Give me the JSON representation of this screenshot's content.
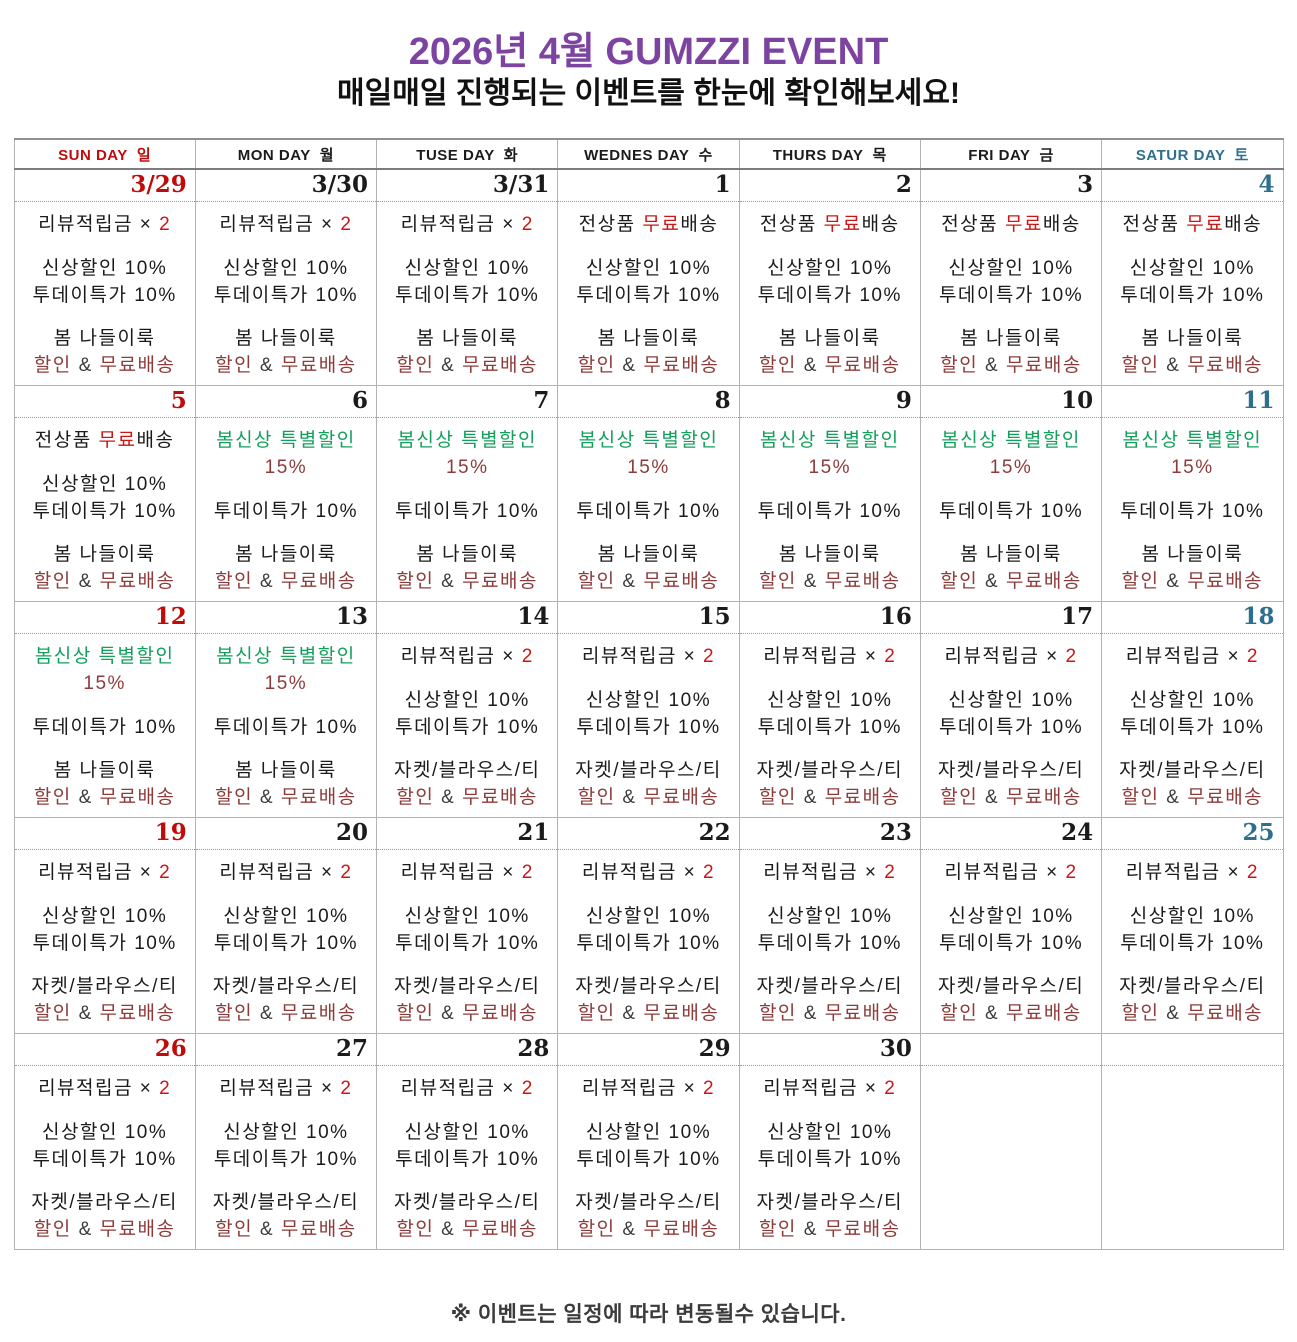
{
  "title": "2026년 4월 GUMZZI EVENT",
  "subtitle": "매일매일 진행되는 이벤트를 한눈에 확인해보세요!",
  "footer": "※ 이벤트는 일정에 따라 변동될수 있습니다.",
  "colors": {
    "purple": "#7d43a1",
    "sun": "#c00b0b",
    "sat": "#2e6e8e",
    "r": "#cc1616",
    "m": "#8e3b3b",
    "g": "#14a05c",
    "a": "#3c3c3c",
    "k": "#1b1b1b",
    "footer_gray": "#3b3b3b"
  },
  "weekday_headers": [
    {
      "label": "SUN DAY  일",
      "c": "sun"
    },
    {
      "label": "MON DAY  월",
      "c": "k"
    },
    {
      "label": "TUSE DAY  화",
      "c": "k"
    },
    {
      "label": "WEDNES DAY  수",
      "c": "k"
    },
    {
      "label": "THURS DAY  목",
      "c": "k"
    },
    {
      "label": "FRI DAY  금",
      "c": "k"
    },
    {
      "label": "SATUR DAY  토",
      "c": "sat"
    }
  ],
  "cell_templates": {
    "review_spring": {
      "blocks": [
        [
          [
            {
              "t": "리뷰적립금 × "
            },
            {
              "t": "2",
              "c": "r"
            }
          ]
        ],
        [
          [
            {
              "t": "신상할인 10%"
            }
          ],
          [
            {
              "t": "투데이특가 10%"
            }
          ]
        ],
        [
          [
            {
              "t": "봄 나들이룩"
            }
          ],
          [
            {
              "t": "할인 ",
              "c": "m"
            },
            {
              "t": "& ",
              "c": "a"
            },
            {
              "t": "무료배송",
              "c": "m"
            }
          ]
        ]
      ]
    },
    "freeship_spring": {
      "blocks": [
        [
          [
            {
              "t": "전상품 "
            },
            {
              "t": "무료",
              "c": "r"
            },
            {
              "t": "배송"
            }
          ]
        ],
        [
          [
            {
              "t": "신상할인 10%"
            }
          ],
          [
            {
              "t": "투데이특가 10%"
            }
          ]
        ],
        [
          [
            {
              "t": "봄 나들이룩"
            }
          ],
          [
            {
              "t": "할인 ",
              "c": "m"
            },
            {
              "t": "& ",
              "c": "a"
            },
            {
              "t": "무료배송",
              "c": "m"
            }
          ]
        ]
      ]
    },
    "spring_sale": {
      "blocks": [
        [
          [
            {
              "t": "봄신상 특별할인",
              "c": "g"
            }
          ],
          [
            {
              "t": "15%",
              "c": "m"
            }
          ]
        ],
        [
          [
            {
              "t": "투데이특가 10%"
            }
          ]
        ],
        [
          [
            {
              "t": "봄 나들이룩"
            }
          ],
          [
            {
              "t": "할인 ",
              "c": "m"
            },
            {
              "t": "& ",
              "c": "a"
            },
            {
              "t": "무료배송",
              "c": "m"
            }
          ]
        ]
      ]
    },
    "review_jacket": {
      "blocks": [
        [
          [
            {
              "t": "리뷰적립금 × "
            },
            {
              "t": "2",
              "c": "r"
            }
          ]
        ],
        [
          [
            {
              "t": "신상할인 10%"
            }
          ],
          [
            {
              "t": "투데이특가 10%"
            }
          ]
        ],
        [
          [
            {
              "t": "자켓/블라우스/티"
            }
          ],
          [
            {
              "t": "할인 ",
              "c": "m"
            },
            {
              "t": "& ",
              "c": "a"
            },
            {
              "t": "무료배송",
              "c": "m"
            }
          ]
        ]
      ]
    },
    "empty": {
      "blocks": []
    }
  },
  "weeks": [
    {
      "days": [
        {
          "date": "3/29",
          "tpl": "review_spring"
        },
        {
          "date": "3/30",
          "tpl": "review_spring"
        },
        {
          "date": "3/31",
          "tpl": "review_spring"
        },
        {
          "date": "1",
          "tpl": "freeship_spring"
        },
        {
          "date": "2",
          "tpl": "freeship_spring"
        },
        {
          "date": "3",
          "tpl": "freeship_spring"
        },
        {
          "date": "4",
          "tpl": "freeship_spring"
        }
      ]
    },
    {
      "days": [
        {
          "date": "5",
          "tpl": "freeship_spring"
        },
        {
          "date": "6",
          "tpl": "spring_sale"
        },
        {
          "date": "7",
          "tpl": "spring_sale"
        },
        {
          "date": "8",
          "tpl": "spring_sale"
        },
        {
          "date": "9",
          "tpl": "spring_sale"
        },
        {
          "date": "10",
          "tpl": "spring_sale"
        },
        {
          "date": "11",
          "tpl": "spring_sale"
        }
      ]
    },
    {
      "days": [
        {
          "date": "12",
          "tpl": "spring_sale"
        },
        {
          "date": "13",
          "tpl": "spring_sale"
        },
        {
          "date": "14",
          "tpl": "review_jacket"
        },
        {
          "date": "15",
          "tpl": "review_jacket"
        },
        {
          "date": "16",
          "tpl": "review_jacket"
        },
        {
          "date": "17",
          "tpl": "review_jacket"
        },
        {
          "date": "18",
          "tpl": "review_jacket"
        }
      ]
    },
    {
      "days": [
        {
          "date": "19",
          "tpl": "review_jacket"
        },
        {
          "date": "20",
          "tpl": "review_jacket"
        },
        {
          "date": "21",
          "tpl": "review_jacket"
        },
        {
          "date": "22",
          "tpl": "review_jacket"
        },
        {
          "date": "23",
          "tpl": "review_jacket"
        },
        {
          "date": "24",
          "tpl": "review_jacket"
        },
        {
          "date": "25",
          "tpl": "review_jacket"
        }
      ]
    },
    {
      "days": [
        {
          "date": "26",
          "tpl": "review_jacket"
        },
        {
          "date": "27",
          "tpl": "review_jacket"
        },
        {
          "date": "28",
          "tpl": "review_jacket"
        },
        {
          "date": "29",
          "tpl": "review_jacket"
        },
        {
          "date": "30",
          "tpl": "review_jacket"
        },
        {
          "date": "",
          "tpl": "empty"
        },
        {
          "date": "",
          "tpl": "empty"
        }
      ]
    }
  ]
}
